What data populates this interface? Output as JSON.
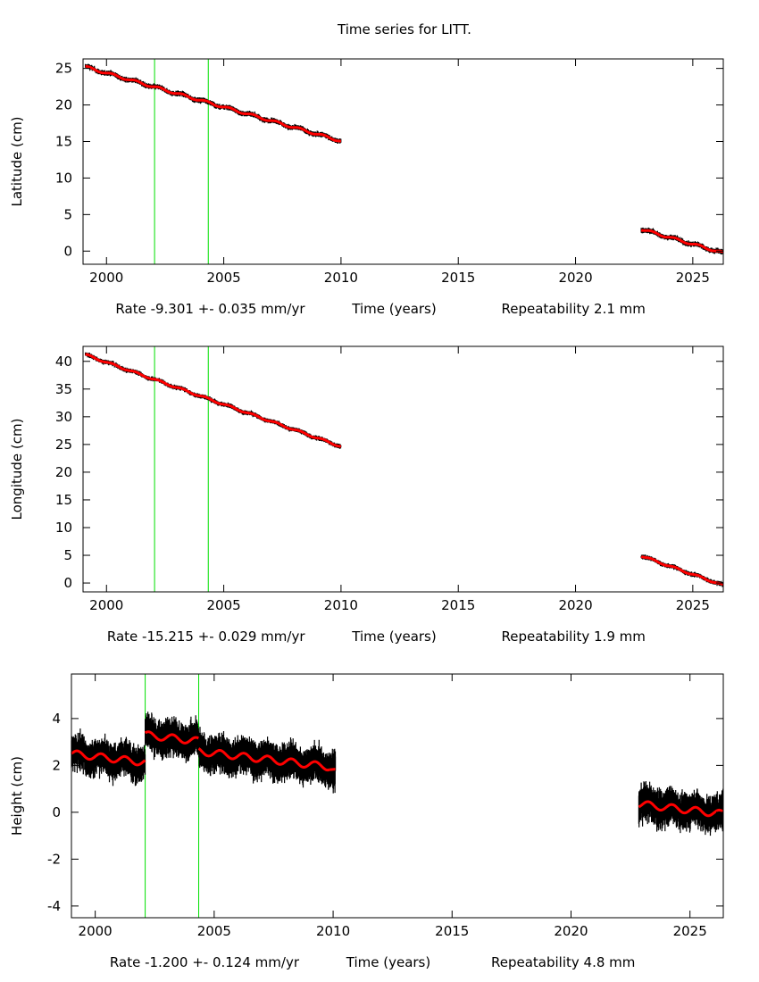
{
  "title": "Time series for LITT.",
  "chart_data": [
    {
      "type": "scatter",
      "ylabel": "Latitude (cm)",
      "xlabel": "Time (years)",
      "rate_text": "Rate -9.301 +- 0.035 mm/yr",
      "repeat_text": "Repeatability 2.1 mm",
      "xlim": [
        1999.0,
        2026.3
      ],
      "ylim": [
        -1.8,
        26.3
      ],
      "xticks": [
        2000,
        2005,
        2010,
        2015,
        2020,
        2025
      ],
      "yticks": [
        0,
        5,
        10,
        15,
        20,
        25
      ],
      "breaks": [
        2002.05,
        2004.34
      ],
      "noise": 0.35,
      "seasonal_amp": 0.15,
      "segments": [
        {
          "start": 1999.1,
          "end": 2010.0,
          "value_start": 25.2,
          "rate": -0.93
        },
        {
          "start": 2022.8,
          "end": 2026.3,
          "value_start": 3.0,
          "rate": -0.93
        }
      ]
    },
    {
      "type": "scatter",
      "ylabel": "Longitude (cm)",
      "xlabel": "Time (years)",
      "rate_text": "Rate -15.215 +- 0.029 mm/yr",
      "repeat_text": "Repeatability 1.9 mm",
      "xlim": [
        1999.0,
        2026.3
      ],
      "ylim": [
        -1.6,
        42.7
      ],
      "xticks": [
        2000,
        2005,
        2010,
        2015,
        2020,
        2025
      ],
      "yticks": [
        0,
        5,
        10,
        15,
        20,
        25,
        30,
        35,
        40
      ],
      "breaks": [
        2002.05,
        2004.34
      ],
      "noise": 0.4,
      "seasonal_amp": 0.15,
      "segments": [
        {
          "start": 1999.1,
          "end": 2010.0,
          "value_start": 41.2,
          "rate": -1.52
        },
        {
          "start": 2022.8,
          "end": 2026.3,
          "value_start": 4.9,
          "rate": -1.52
        }
      ]
    },
    {
      "type": "scatter",
      "ylabel": "Height (cm)",
      "xlabel": "Time (years)",
      "rate_text": "Rate -1.200 +- 0.124 mm/yr",
      "repeat_text": "Repeatability 4.8 mm",
      "xlim": [
        1999.0,
        2026.4
      ],
      "ylim": [
        -4.5,
        5.9
      ],
      "xticks": [
        2000,
        2005,
        2010,
        2015,
        2020,
        2025
      ],
      "yticks": [
        -4,
        -2,
        0,
        2,
        4
      ],
      "breaks": [
        2002.1,
        2004.35
      ],
      "noise": 0.75,
      "seasonal_amp": 0.15,
      "segments": [
        {
          "start": 1999.0,
          "end": 2002.1,
          "value_start": 2.5,
          "rate": -0.12
        },
        {
          "start": 2002.1,
          "end": 2004.35,
          "value_start": 3.3,
          "rate": -0.12
        },
        {
          "start": 2004.35,
          "end": 2009.85,
          "value_start": 2.6,
          "rate": -0.12
        },
        {
          "start": 2009.85,
          "end": 2010.1,
          "value_start": 1.95,
          "rate": -0.8
        },
        {
          "start": 2022.85,
          "end": 2026.4,
          "value_start": 0.35,
          "rate": -0.12
        }
      ]
    }
  ]
}
